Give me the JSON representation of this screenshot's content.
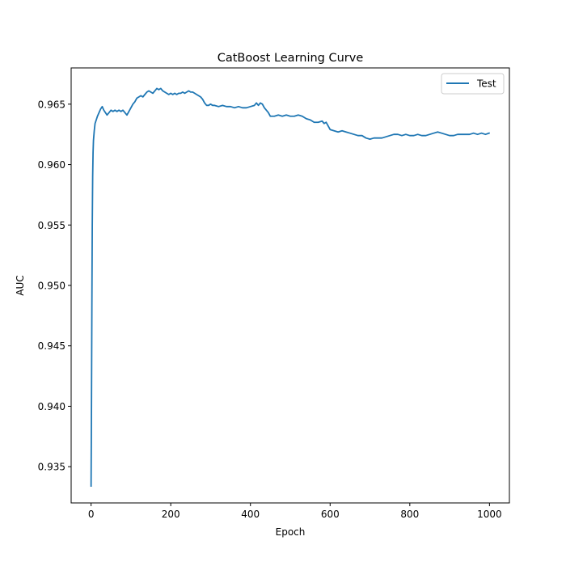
{
  "chart_data": {
    "type": "line",
    "title": "CatBoost Learning Curve",
    "xlabel": "Epoch",
    "ylabel": "AUC",
    "xlim": [
      -50,
      1050
    ],
    "ylim": [
      0.932,
      0.968
    ],
    "xticks": [
      0,
      200,
      400,
      600,
      800,
      1000
    ],
    "yticks": [
      0.935,
      0.94,
      0.945,
      0.95,
      0.955,
      0.96,
      0.965
    ],
    "xtick_labels": [
      "0",
      "200",
      "400",
      "600",
      "800",
      "1000"
    ],
    "ytick_labels": [
      "0.935",
      "0.940",
      "0.945",
      "0.950",
      "0.955",
      "0.960",
      "0.965"
    ],
    "grid": false,
    "legend": {
      "position": "top-right",
      "entries": [
        "Test"
      ]
    },
    "series": [
      {
        "name": "Test",
        "color": "#1f77b4",
        "points": [
          [
            0,
            0.9334
          ],
          [
            1,
            0.94
          ],
          [
            2,
            0.948
          ],
          [
            3,
            0.955
          ],
          [
            4,
            0.959
          ],
          [
            5,
            0.961
          ],
          [
            6,
            0.962
          ],
          [
            8,
            0.9628
          ],
          [
            10,
            0.9634
          ],
          [
            13,
            0.9637
          ],
          [
            16,
            0.964
          ],
          [
            20,
            0.9643
          ],
          [
            24,
            0.9646
          ],
          [
            28,
            0.9648
          ],
          [
            32,
            0.9645
          ],
          [
            36,
            0.9643
          ],
          [
            40,
            0.9641
          ],
          [
            45,
            0.9643
          ],
          [
            50,
            0.9645
          ],
          [
            55,
            0.9644
          ],
          [
            60,
            0.9645
          ],
          [
            65,
            0.9644
          ],
          [
            70,
            0.9645
          ],
          [
            75,
            0.9644
          ],
          [
            80,
            0.9645
          ],
          [
            85,
            0.9643
          ],
          [
            90,
            0.9641
          ],
          [
            95,
            0.9644
          ],
          [
            100,
            0.9647
          ],
          [
            105,
            0.965
          ],
          [
            110,
            0.9652
          ],
          [
            115,
            0.9655
          ],
          [
            120,
            0.9656
          ],
          [
            125,
            0.9657
          ],
          [
            130,
            0.9656
          ],
          [
            135,
            0.9658
          ],
          [
            140,
            0.966
          ],
          [
            145,
            0.9661
          ],
          [
            150,
            0.966
          ],
          [
            155,
            0.9659
          ],
          [
            160,
            0.9661
          ],
          [
            165,
            0.9663
          ],
          [
            170,
            0.9662
          ],
          [
            175,
            0.9663
          ],
          [
            180,
            0.9661
          ],
          [
            185,
            0.966
          ],
          [
            190,
            0.9659
          ],
          [
            195,
            0.9658
          ],
          [
            200,
            0.9659
          ],
          [
            205,
            0.9658
          ],
          [
            210,
            0.9659
          ],
          [
            215,
            0.9658
          ],
          [
            220,
            0.9659
          ],
          [
            225,
            0.9659
          ],
          [
            230,
            0.966
          ],
          [
            235,
            0.9659
          ],
          [
            240,
            0.966
          ],
          [
            245,
            0.9661
          ],
          [
            250,
            0.966
          ],
          [
            255,
            0.966
          ],
          [
            260,
            0.9659
          ],
          [
            265,
            0.9658
          ],
          [
            270,
            0.9657
          ],
          [
            275,
            0.9656
          ],
          [
            280,
            0.9654
          ],
          [
            285,
            0.9651
          ],
          [
            290,
            0.9649
          ],
          [
            295,
            0.9649
          ],
          [
            300,
            0.965
          ],
          [
            305,
            0.9649
          ],
          [
            310,
            0.9649
          ],
          [
            320,
            0.9648
          ],
          [
            330,
            0.9649
          ],
          [
            340,
            0.9648
          ],
          [
            350,
            0.9648
          ],
          [
            360,
            0.9647
          ],
          [
            370,
            0.9648
          ],
          [
            380,
            0.9647
          ],
          [
            390,
            0.9647
          ],
          [
            400,
            0.9648
          ],
          [
            410,
            0.9649
          ],
          [
            415,
            0.9651
          ],
          [
            420,
            0.9649
          ],
          [
            425,
            0.9651
          ],
          [
            430,
            0.965
          ],
          [
            435,
            0.9647
          ],
          [
            440,
            0.9645
          ],
          [
            445,
            0.9643
          ],
          [
            450,
            0.964
          ],
          [
            460,
            0.964
          ],
          [
            470,
            0.9641
          ],
          [
            480,
            0.964
          ],
          [
            490,
            0.9641
          ],
          [
            500,
            0.964
          ],
          [
            510,
            0.964
          ],
          [
            520,
            0.9641
          ],
          [
            530,
            0.964
          ],
          [
            540,
            0.9638
          ],
          [
            550,
            0.9637
          ],
          [
            560,
            0.9635
          ],
          [
            570,
            0.9635
          ],
          [
            580,
            0.9636
          ],
          [
            585,
            0.9634
          ],
          [
            590,
            0.9635
          ],
          [
            595,
            0.9632
          ],
          [
            600,
            0.9629
          ],
          [
            610,
            0.9628
          ],
          [
            620,
            0.9627
          ],
          [
            630,
            0.9628
          ],
          [
            640,
            0.9627
          ],
          [
            650,
            0.9626
          ],
          [
            660,
            0.9625
          ],
          [
            670,
            0.9624
          ],
          [
            680,
            0.9624
          ],
          [
            690,
            0.9622
          ],
          [
            700,
            0.9621
          ],
          [
            710,
            0.9622
          ],
          [
            720,
            0.9622
          ],
          [
            730,
            0.9622
          ],
          [
            740,
            0.9623
          ],
          [
            750,
            0.9624
          ],
          [
            760,
            0.9625
          ],
          [
            770,
            0.9625
          ],
          [
            780,
            0.9624
          ],
          [
            790,
            0.9625
          ],
          [
            800,
            0.9624
          ],
          [
            810,
            0.9624
          ],
          [
            820,
            0.9625
          ],
          [
            830,
            0.9624
          ],
          [
            840,
            0.9624
          ],
          [
            850,
            0.9625
          ],
          [
            860,
            0.9626
          ],
          [
            870,
            0.9627
          ],
          [
            880,
            0.9626
          ],
          [
            890,
            0.9625
          ],
          [
            900,
            0.9624
          ],
          [
            910,
            0.9624
          ],
          [
            920,
            0.9625
          ],
          [
            930,
            0.9625
          ],
          [
            940,
            0.9625
          ],
          [
            950,
            0.9625
          ],
          [
            960,
            0.9626
          ],
          [
            970,
            0.9625
          ],
          [
            980,
            0.9626
          ],
          [
            990,
            0.9625
          ],
          [
            999,
            0.9626
          ]
        ]
      }
    ]
  }
}
